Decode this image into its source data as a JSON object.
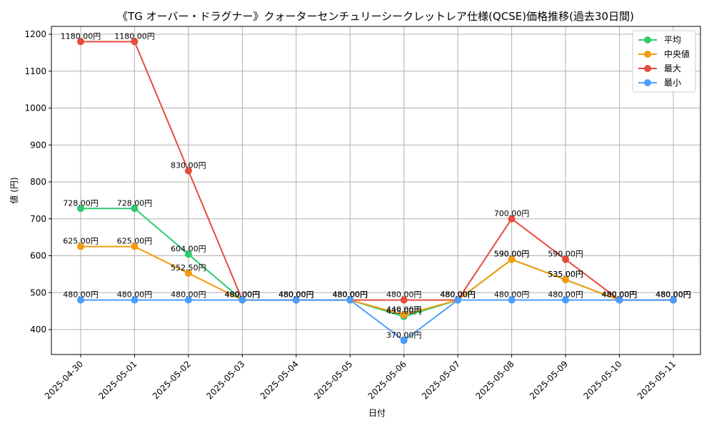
{
  "chart_data": {
    "type": "line",
    "title": "《TG オーバー・ドラグナー》クォーターセンチュリーシークレットレア仕様(QCSE)価格推移(過去30日間)",
    "xlabel": "日付",
    "ylabel": "値 (円)",
    "categories": [
      "2025-04-30",
      "2025-05-01",
      "2025-05-02",
      "2025-05-03",
      "2025-05-04",
      "2025-05-05",
      "2025-05-06",
      "2025-05-07",
      "2025-05-08",
      "2025-05-09",
      "2025-05-10",
      "2025-05-11"
    ],
    "ylim": [
      330,
      1220
    ],
    "yticks": [
      400,
      500,
      600,
      700,
      800,
      900,
      1000,
      1100,
      1200
    ],
    "grid": true,
    "legend_position": "top-right",
    "label_suffix": "円",
    "series": [
      {
        "name": "平均",
        "color": "#2ecc71",
        "values": [
          728,
          728,
          604,
          480,
          480,
          480,
          435,
          480,
          590,
          535,
          480,
          480
        ]
      },
      {
        "name": "中央値",
        "color": "#f39c12",
        "values": [
          625,
          625,
          552.5,
          480,
          480,
          480,
          440,
          480,
          590,
          535,
          480,
          480
        ]
      },
      {
        "name": "最大",
        "color": "#e74c3c",
        "values": [
          1180,
          1180,
          830,
          480,
          480,
          480,
          480,
          480,
          700,
          590,
          480,
          480
        ]
      },
      {
        "name": "最小",
        "color": "#4a9eff",
        "values": [
          480,
          480,
          480,
          480,
          480,
          480,
          370,
          480,
          480,
          480,
          480,
          480
        ]
      }
    ]
  }
}
